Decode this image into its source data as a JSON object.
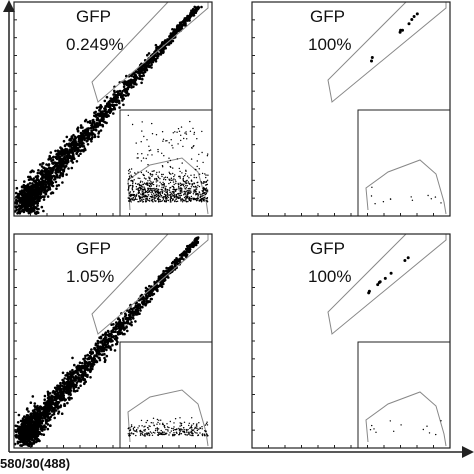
{
  "panels": [
    {
      "label": "GFP",
      "percent": "0.249%"
    },
    {
      "label": "GFP",
      "percent": "100%"
    },
    {
      "label": "GFP",
      "percent": "1.05%"
    },
    {
      "label": "GFP",
      "percent": "100%"
    }
  ],
  "x_axis_label": "580/30(488)"
}
